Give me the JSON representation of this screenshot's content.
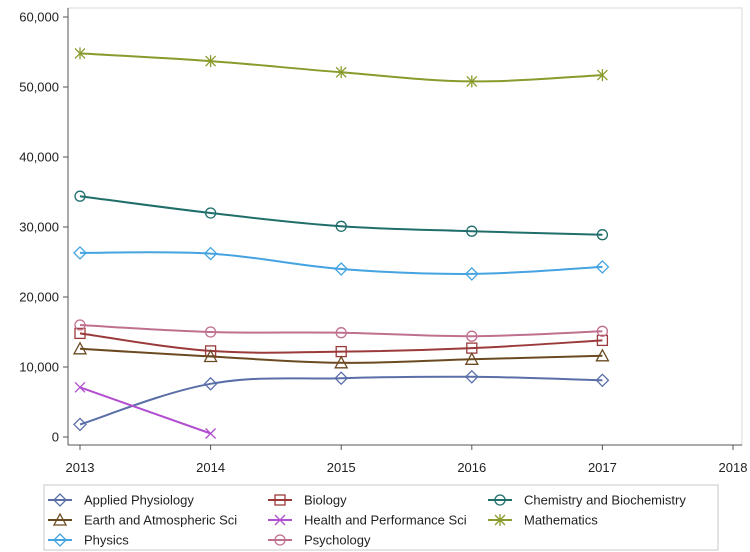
{
  "chart_data": {
    "type": "line",
    "title": "",
    "xlabel": "",
    "ylabel": "",
    "xlim": [
      2013,
      2018
    ],
    "ylim": [
      0,
      60000
    ],
    "x_ticks": [
      2013,
      2014,
      2015,
      2016,
      2017,
      2018
    ],
    "x_tick_labels": [
      "2013",
      "2014",
      "2015",
      "2016",
      "2017",
      "2018"
    ],
    "y_ticks": [
      0,
      10000,
      20000,
      30000,
      40000,
      50000,
      60000
    ],
    "y_tick_labels": [
      "0",
      "10,000",
      "20,000",
      "30,000",
      "40,000",
      "50,000",
      "60,000"
    ],
    "grid": false,
    "legend_position": "bottom",
    "series": [
      {
        "name": "Applied Physiology",
        "color": "#5a6fa8",
        "marker": "diamond",
        "x": [
          2013,
          2014,
          2015,
          2016,
          2017
        ],
        "values": [
          1800,
          7600,
          8400,
          8600,
          8100
        ]
      },
      {
        "name": "Biology",
        "color": "#9b3a3a",
        "marker": "square",
        "x": [
          2013,
          2014,
          2015,
          2016,
          2017
        ],
        "values": [
          14800,
          12300,
          12200,
          12700,
          13800
        ]
      },
      {
        "name": "Chemistry and Biochemistry",
        "color": "#1f6e6a",
        "marker": "circle",
        "x": [
          2013,
          2014,
          2015,
          2016,
          2017
        ],
        "values": [
          34400,
          32000,
          30100,
          29400,
          28900
        ]
      },
      {
        "name": "Earth and Atmospheric Sci",
        "color": "#6b4a22",
        "marker": "triangle",
        "x": [
          2013,
          2014,
          2015,
          2016,
          2017
        ],
        "values": [
          12600,
          11500,
          10600,
          11100,
          11600
        ]
      },
      {
        "name": "Health and Performance Sci",
        "color": "#b24ed0",
        "marker": "x",
        "x": [
          2013,
          2014
        ],
        "values": [
          7100,
          500
        ]
      },
      {
        "name": "Mathematics",
        "color": "#8a9a2c",
        "marker": "star",
        "x": [
          2013,
          2014,
          2015,
          2016,
          2017
        ],
        "values": [
          54800,
          53700,
          52100,
          50800,
          51700
        ]
      },
      {
        "name": "Physics",
        "color": "#44a3e0",
        "marker": "diamond",
        "x": [
          2013,
          2014,
          2015,
          2016,
          2017
        ],
        "values": [
          26300,
          26200,
          24000,
          23300,
          24300
        ]
      },
      {
        "name": "Psychology",
        "color": "#c0708f",
        "marker": "circle",
        "x": [
          2013,
          2014,
          2015,
          2016,
          2017
        ],
        "values": [
          16000,
          15000,
          14900,
          14400,
          15100
        ]
      }
    ]
  }
}
